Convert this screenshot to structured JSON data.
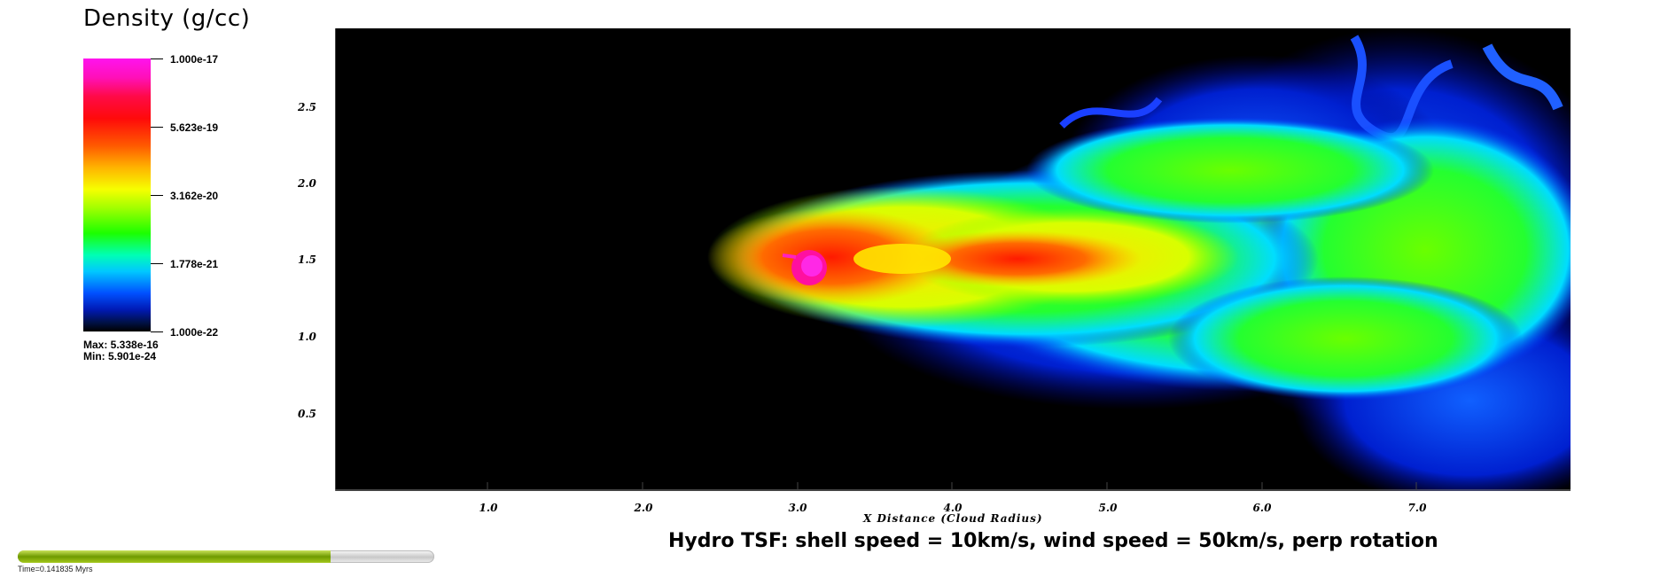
{
  "legend": {
    "title": "Density (g/cc)",
    "ticks": [
      "1.000e-17",
      "5.623e-19",
      "3.162e-20",
      "1.778e-21",
      "1.000e-22"
    ],
    "max_text": "Max:  5.338e-16",
    "min_text": "Min:  5.901e-24"
  },
  "plot": {
    "x_axis_label": "X Distance (Cloud Radius)",
    "x_ticks": [
      "1.0",
      "2.0",
      "3.0",
      "4.0",
      "5.0",
      "6.0",
      "7.0"
    ],
    "y_ticks": [
      "2.5",
      "2.0",
      "1.5",
      "1.0",
      "0.5"
    ],
    "caption": "Hydro TSF: shell speed = 10km/s, wind speed = 50km/s, perp rotation"
  },
  "time": {
    "label": "Time=0.141835 Myrs",
    "progress": 0.75
  },
  "colors": {
    "background": "#000000",
    "slider_fill": "#7ea800"
  }
}
